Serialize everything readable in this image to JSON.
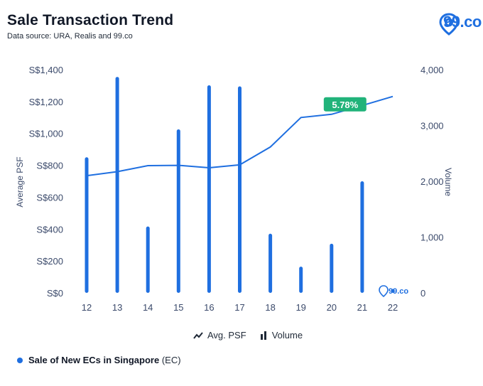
{
  "header": {
    "title": "Sale Transaction Trend",
    "subtitle": "Data source: URA, Realis and 99.co",
    "logo_text": "99.co"
  },
  "legend": {
    "line_label": "Avg. PSF",
    "bar_label": "Volume"
  },
  "footer": {
    "label_main": "Sale of New ECs in Singapore",
    "label_suffix": "(EC)"
  },
  "colors": {
    "accent": "#1f6fe0",
    "badge": "#21b37a",
    "axis_text": "#3b4a6b"
  },
  "chart_data": {
    "type": "bar",
    "categories": [
      "12",
      "13",
      "14",
      "15",
      "16",
      "17",
      "18",
      "19",
      "20",
      "21",
      "22"
    ],
    "series": [
      {
        "name": "Volume",
        "type": "bar",
        "axis": "right",
        "values": [
          2430,
          3870,
          1190,
          2930,
          3720,
          3700,
          1060,
          470,
          880,
          2000,
          70
        ]
      },
      {
        "name": "Avg. PSF",
        "type": "line",
        "axis": "left",
        "values": [
          735,
          760,
          798,
          800,
          785,
          803,
          915,
          1100,
          1120,
          1175,
          1232
        ]
      }
    ],
    "ylabel": "Average PSF",
    "y2label": "Volume",
    "ylim": [
      0,
      1400
    ],
    "y2lim": [
      0,
      4000
    ],
    "y_ticks": [
      "S$0",
      "S$200",
      "S$400",
      "S$600",
      "S$800",
      "S$1,000",
      "S$1,200",
      "S$1,400"
    ],
    "y_tick_values": [
      0,
      200,
      400,
      600,
      800,
      1000,
      1200,
      1400
    ],
    "y2_ticks": [
      "0",
      "1,000",
      "2,000",
      "3,000",
      "4,000"
    ],
    "y2_tick_values": [
      0,
      1000,
      2000,
      3000,
      4000
    ],
    "annotation": {
      "text": "5.78%",
      "category": "20"
    },
    "grid": false,
    "legend_position": "bottom-center"
  }
}
